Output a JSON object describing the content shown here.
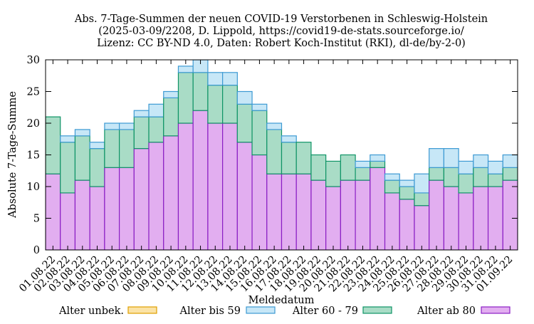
{
  "chart_data": {
    "type": "bar",
    "stacked": true,
    "title_lines": [
      "Abs. 7-Tage-Summen der neuen COVID-19 Verstorbenen in Schleswig-Holstein",
      "(2025-03-09/2208, D. Lippold, https://covid19-de-stats.sourceforge.io/",
      "Lizenz: CC BY-ND 4.0, Daten: Robert Koch-Institut (RKI), dl-de/by-2-0)"
    ],
    "xlabel": "Meldedatum",
    "ylabel": "Absolute 7-Tage-Summe",
    "ylim": [
      0,
      30
    ],
    "yticks": [
      0,
      5,
      10,
      15,
      20,
      25,
      30
    ],
    "grid": false,
    "legend_position": "bottom",
    "categories": [
      "01.08.22",
      "02.08.22",
      "03.08.22",
      "04.08.22",
      "05.08.22",
      "06.08.22",
      "07.08.22",
      "08.08.22",
      "09.08.22",
      "10.08.22",
      "11.08.22",
      "12.08.22",
      "13.08.22",
      "14.08.22",
      "15.08.22",
      "16.08.22",
      "17.08.22",
      "18.08.22",
      "19.08.22",
      "20.08.22",
      "21.08.22",
      "22.08.22",
      "23.08.22",
      "24.08.22",
      "25.08.22",
      "26.08.22",
      "27.08.22",
      "28.08.22",
      "29.08.22",
      "30.08.22",
      "31.08.22",
      "01.09.22"
    ],
    "series": [
      {
        "name": "Alter ab 80",
        "color": "#e2aef0",
        "stroke": "#8b1fc4",
        "values": [
          12,
          9,
          11,
          10,
          13,
          13,
          16,
          17,
          18,
          20,
          22,
          20,
          20,
          17,
          15,
          12,
          12,
          12,
          11,
          10,
          11,
          11,
          13,
          9,
          8,
          7,
          11,
          10,
          9,
          10,
          10,
          11
        ]
      },
      {
        "name": "Alter 60 - 79",
        "color": "#a9dcc6",
        "stroke": "#0f9466",
        "values": [
          9,
          8,
          7,
          6,
          6,
          6,
          5,
          4,
          6,
          8,
          6,
          6,
          6,
          6,
          7,
          7,
          5,
          5,
          4,
          4,
          4,
          2,
          1,
          2,
          2,
          2,
          2,
          3,
          3,
          3,
          2,
          2
        ]
      },
      {
        "name": "Alter bis 59",
        "color": "#c7e7f7",
        "stroke": "#3d9ad3",
        "values": [
          0,
          1,
          1,
          1,
          1,
          1,
          1,
          2,
          1,
          1,
          2,
          2,
          2,
          2,
          1,
          1,
          1,
          0,
          0,
          0,
          0,
          1,
          1,
          1,
          1,
          3,
          3,
          3,
          2,
          2,
          2,
          2
        ]
      },
      {
        "name": "Alter unbek.",
        "color": "#fbe3a6",
        "stroke": "#e0a000",
        "values": [
          0,
          0,
          0,
          0,
          0,
          0,
          0,
          0,
          0,
          0,
          0,
          0,
          0,
          0,
          0,
          0,
          0,
          0,
          0,
          0,
          0,
          0,
          0,
          0,
          0,
          0,
          0,
          0,
          0,
          0,
          0,
          0
        ]
      }
    ],
    "legend_order": [
      "Alter unbek.",
      "Alter bis 59",
      "Alter 60 - 79",
      "Alter ab 80"
    ]
  }
}
